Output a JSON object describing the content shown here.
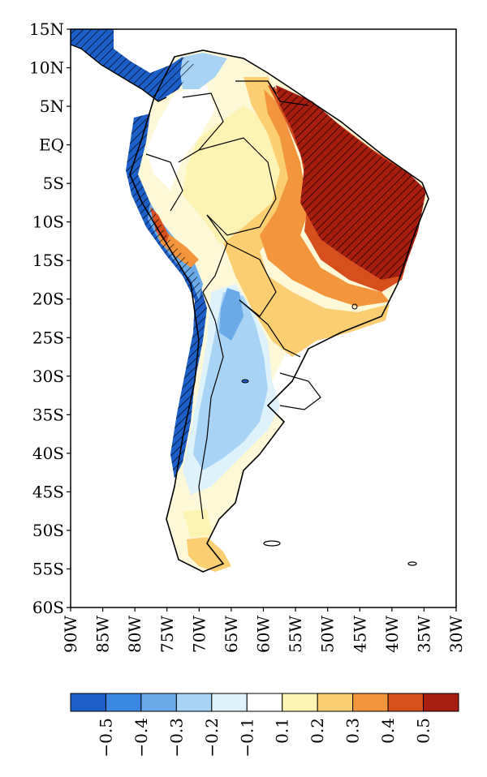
{
  "lat_labels": [
    "15N",
    "10N",
    "5N",
    "EQ",
    "5S",
    "10S",
    "15S",
    "20S",
    "25S",
    "30S",
    "35S",
    "40S",
    "45S",
    "50S",
    "55S",
    "60S"
  ],
  "lon_labels": [
    "90W",
    "85W",
    "80W",
    "75W",
    "70W",
    "65W",
    "60W",
    "55W",
    "50W",
    "45W",
    "40W",
    "35W",
    "30W"
  ],
  "colorbar": {
    "colors": [
      "#1d5fc9",
      "#3b86e0",
      "#6aaae8",
      "#a8d3f5",
      "#ddf2fb",
      "#ffffff",
      "#fdf3b3",
      "#fbce72",
      "#f2953c",
      "#d84f1e",
      "#a71d10"
    ],
    "labels": [
      "−0.5",
      "−0.4",
      "−0.3",
      "−0.2",
      "−0.1",
      "0.1",
      "0.2",
      "0.3",
      "0.4",
      "0.5"
    ]
  },
  "map": {
    "lon_range": [
      -90,
      -30
    ],
    "lat_range": [
      -60,
      15
    ],
    "hatching": "diagonal hatch over significant areas",
    "hatched_regions": [
      "northeast-brazil",
      "pacific-coast",
      "central-america"
    ]
  }
}
